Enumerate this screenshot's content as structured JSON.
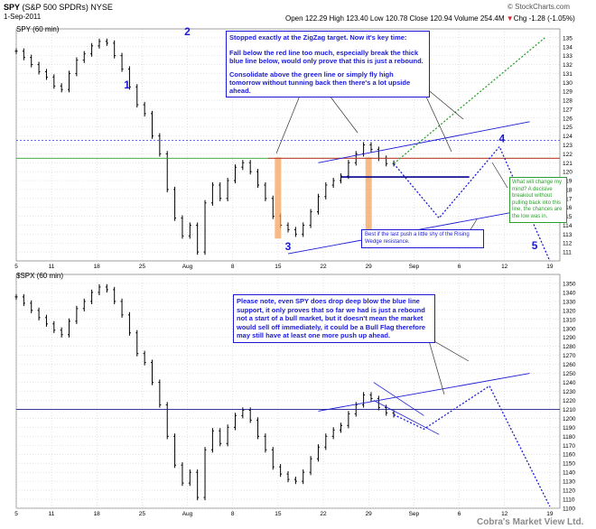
{
  "header": {
    "symbol": "SPY",
    "name": "(S&P 500 SPDRs)",
    "exchange": "NYSE",
    "date": "1-Sep-2011",
    "copyright": "© StockCharts.com",
    "open_label": "Open",
    "open": "122.29",
    "high_label": "High",
    "high": "123.40",
    "low_label": "Low",
    "low": "120.78",
    "close_label": "Close",
    "close": "120.94",
    "volume_label": "Volume",
    "volume": "254.4M",
    "chg_label": "Chg",
    "chg": "-1.28 (-1.05%)",
    "chg_icon": "down-triangle-icon"
  },
  "watermark": "Cobra's Market View Ltd.",
  "colors": {
    "candle": "#000000",
    "grid": "#c8c8c8",
    "annotation_blue": "#1a1ad6",
    "note_text": "#1a1ad6",
    "green_line": "#2ca02c",
    "red_line": "#d62728",
    "orange_bar": "#f4a460",
    "note_border_green": "#2ca02c"
  },
  "chart_data": [
    {
      "type": "line",
      "panel_label": "SPY (60 min)",
      "x_ticks": [
        "5",
        "11",
        "18",
        "25",
        "Aug",
        "8",
        "15",
        "22",
        "29",
        "Sep",
        "6",
        "12",
        "19"
      ],
      "ylim": [
        110,
        136
      ],
      "y_ticks": [
        111,
        112,
        113,
        114,
        115,
        116,
        117,
        118,
        119,
        120,
        121,
        122,
        123,
        124,
        125,
        126,
        127,
        128,
        129,
        130,
        131,
        132,
        133,
        134,
        135
      ],
      "series": [
        {
          "x": [
            0,
            3,
            6,
            9,
            12,
            15,
            18,
            21,
            24,
            27,
            30,
            33,
            36,
            39,
            42,
            45,
            48,
            51,
            54,
            57,
            60,
            63,
            66,
            69,
            72,
            75,
            78,
            81,
            84,
            87,
            90,
            93,
            96,
            99,
            102,
            105,
            108,
            111,
            114,
            117,
            120,
            123,
            126,
            129,
            132,
            135,
            138,
            141,
            144,
            147,
            150,
            153,
            156,
            159,
            162,
            165,
            168,
            171,
            174,
            177,
            180,
            183,
            186,
            189,
            192
          ],
          "values": [
            133.5,
            132.8,
            132.0,
            131.2,
            130.6,
            129.6,
            129.2,
            131.0,
            132.5,
            133.2,
            134.1,
            134.6,
            134.4,
            133.0,
            131.5,
            129.5,
            127.5,
            126.5,
            124.0,
            122.0,
            118.0,
            114.8,
            112.8,
            114.0,
            111.0,
            116.5,
            118.5,
            117.0,
            119.0,
            120.5,
            121.0,
            120.0,
            118.5,
            117.0,
            115.0,
            114.0,
            113.5,
            113.0,
            114.0,
            115.5,
            117.2,
            118.5,
            119.0,
            119.5,
            121.0,
            122.0,
            123.0,
            122.5,
            121.5,
            120.9,
            120.94,
            null,
            null,
            null,
            null,
            null,
            null,
            null,
            null,
            null,
            null,
            null,
            null,
            null,
            null
          ]
        }
      ],
      "wave_labels": [
        {
          "label": "1",
          "x": 44,
          "y": 129.3
        },
        {
          "label": "2",
          "x": 68,
          "y": 135.3
        },
        {
          "label": "3",
          "x": 108,
          "y": 111.2
        },
        {
          "label": "4",
          "x": 193,
          "y": 123.3
        },
        {
          "label": "5",
          "x": 206,
          "y": 111.3
        }
      ],
      "levels": {
        "red": 121.5,
        "green": 121.5,
        "blue_dashed": 123.5,
        "blue_solid_short": 119.4
      },
      "annotations": [
        "Stopped exactly at the ZigZag target. Now it's key time:",
        "Fall below the red line too much, especially break the thick blue line below, would only prove that this is just a rebound.",
        "Consolidate above the green line or simply fly high tomorrow without tunning back then there's a lot upside ahead.",
        "Best if the last push a little shy of the Rising Wedge resistance.",
        "What will change my mind? A decisive breakout without pulling back into this line, the chances are the low was in."
      ]
    },
    {
      "type": "line",
      "panel_label": "$SPX (60 min)",
      "x_ticks": [
        "5",
        "11",
        "18",
        "25",
        "Aug",
        "8",
        "15",
        "22",
        "29",
        "Sep",
        "6",
        "12",
        "19"
      ],
      "ylim": [
        1100,
        1360
      ],
      "y_ticks": [
        1100,
        1110,
        1120,
        1130,
        1140,
        1150,
        1160,
        1170,
        1180,
        1190,
        1200,
        1210,
        1220,
        1230,
        1240,
        1250,
        1260,
        1270,
        1280,
        1290,
        1300,
        1310,
        1320,
        1330,
        1340,
        1350
      ],
      "series": [
        {
          "x": [
            0,
            3,
            6,
            9,
            12,
            15,
            18,
            21,
            24,
            27,
            30,
            33,
            36,
            39,
            42,
            45,
            48,
            51,
            54,
            57,
            60,
            63,
            66,
            69,
            72,
            75,
            78,
            81,
            84,
            87,
            90,
            93,
            96,
            99,
            102,
            105,
            108,
            111,
            114,
            117,
            120,
            123,
            126,
            129,
            132,
            135,
            138,
            141,
            144,
            147,
            150
          ],
          "values": [
            1335,
            1328,
            1320,
            1312,
            1305,
            1298,
            1293,
            1308,
            1322,
            1330,
            1340,
            1346,
            1343,
            1330,
            1315,
            1295,
            1272,
            1262,
            1240,
            1215,
            1180,
            1148,
            1128,
            1140,
            1112,
            1165,
            1186,
            1172,
            1190,
            1203,
            1209,
            1198,
            1180,
            1165,
            1146,
            1138,
            1132,
            1130,
            1140,
            1155,
            1168,
            1180,
            1187,
            1192,
            1205,
            1215,
            1226,
            1222,
            1212,
            1206,
            1204
          ]
        }
      ],
      "annotations": [
        "Please note, even SPY does drop deep blow the blue line support, it only proves that so far we had is just a rebound not a start of a bull market, but it doesn't mean the market would sell off immediately, it could be a Bull Flag therefore may still have at least one more push up ahead."
      ]
    }
  ]
}
